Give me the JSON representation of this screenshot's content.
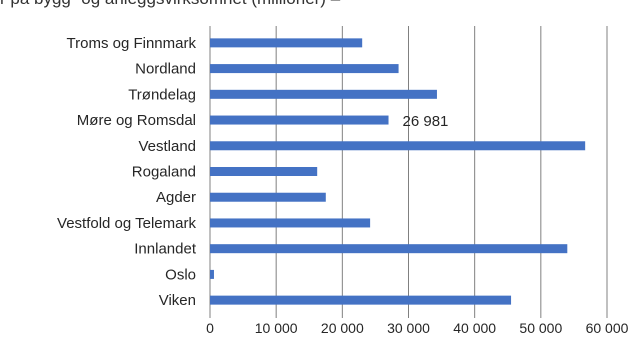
{
  "caption": "r på bygg- og anleggsvirksomhet (millioner) –",
  "chart_data": {
    "type": "bar",
    "orientation": "horizontal",
    "categories": [
      "Troms og Finnmark",
      "Nordland",
      "Trøndelag",
      "Møre og Romsdal",
      "Vestland",
      "Rogaland",
      "Agder",
      "Vestfold og Telemark",
      "Innlandet",
      "Oslo",
      "Viken"
    ],
    "values": [
      23000,
      28500,
      34300,
      26981,
      56700,
      16200,
      17500,
      24200,
      54000,
      600,
      45500
    ],
    "data_labels": [
      {
        "category": "Møre og Romsdal",
        "text": "26 981"
      }
    ],
    "xticks": [
      "0",
      "10 000",
      "20 000",
      "30 000",
      "40 000",
      "50 000",
      "60 000"
    ],
    "xlim": [
      0,
      60000
    ],
    "grid": true,
    "bar_color": "#4472c4",
    "grid_color": "#808080"
  }
}
